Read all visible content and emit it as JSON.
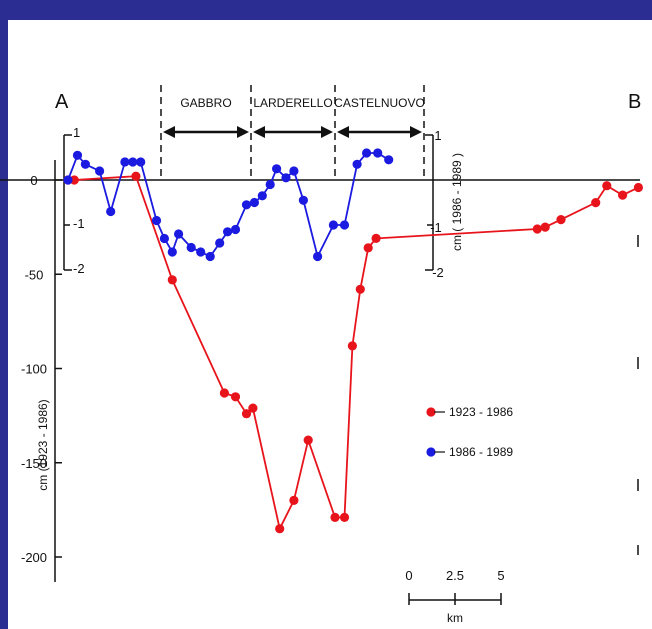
{
  "chart_data": {
    "type": "line",
    "title": "",
    "endpoints": {
      "start": "A",
      "end": "B"
    },
    "zones": [
      "GABBRO",
      "LARDERELLO",
      "CASTELNUOVO"
    ],
    "left_axis": {
      "label": "cm (1923 - 1986)",
      "ticks": [
        "0",
        "-50",
        "-100",
        "-150",
        "-200"
      ],
      "ylim": [
        -210,
        10
      ]
    },
    "inner_axis_left": {
      "ticks": [
        "1",
        "-1",
        "-2"
      ]
    },
    "inner_axis_right": {
      "label": "cm ( 1986 - 1989 )",
      "ticks": [
        "1",
        "-1",
        "-2"
      ],
      "ylim": [
        -2,
        1
      ]
    },
    "scale_bar": {
      "ticks": [
        "0",
        "2.5",
        "5"
      ],
      "unit": "km"
    },
    "x_unit": "km",
    "series": [
      {
        "name": "1923 - 1986",
        "color": "#e8141c",
        "axis": "left",
        "x": [
          0.0,
          0.4,
          4.3,
          6.6,
          9.9,
          10.6,
          11.3,
          11.7,
          13.4,
          14.3,
          15.2,
          16.9,
          17.5,
          18.0,
          18.5,
          19.0,
          19.5,
          29.7,
          30.2,
          31.2,
          33.4,
          34.1,
          35.1,
          36.1
        ],
        "y": [
          0,
          0,
          2,
          -53,
          -113,
          -115,
          -124,
          -121,
          -185,
          -170,
          -138,
          -179,
          -179,
          -88,
          -58,
          -36,
          -31,
          -26,
          -25,
          -21,
          -12,
          -3,
          -8,
          -4
        ]
      },
      {
        "name": "1986 - 1989",
        "color": "#1a1ae0",
        "axis": "right",
        "x": [
          0.0,
          0.6,
          1.1,
          2.0,
          2.7,
          3.6,
          4.1,
          4.6,
          5.6,
          6.1,
          6.6,
          7.0,
          7.8,
          8.4,
          9.0,
          9.6,
          10.1,
          10.6,
          11.3,
          11.8,
          12.3,
          12.8,
          13.2,
          13.8,
          14.3,
          14.9,
          15.8,
          16.8,
          17.5,
          18.3,
          18.9,
          19.6,
          20.3
        ],
        "y": [
          0,
          0.55,
          0.35,
          0.2,
          -0.7,
          0.4,
          0.4,
          0.4,
          -0.9,
          -1.3,
          -1.6,
          -1.2,
          -1.5,
          -1.6,
          -1.7,
          -1.4,
          -1.15,
          -1.1,
          -0.55,
          -0.5,
          -0.35,
          -0.1,
          0.25,
          0.05,
          0.2,
          -0.45,
          -1.7,
          -1.0,
          -1.0,
          0.35,
          0.6,
          0.6,
          0.45
        ]
      }
    ],
    "legend_position": "center-right"
  }
}
